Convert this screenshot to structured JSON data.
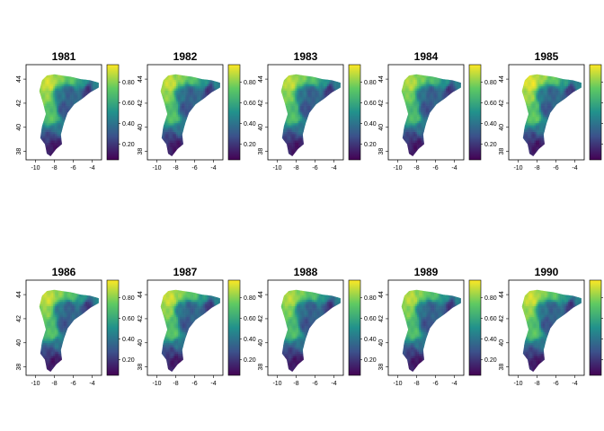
{
  "chart_data": {
    "type": "heatmap",
    "colormap": [
      "#440154",
      "#3b528b",
      "#21918c",
      "#5ec962",
      "#fde725"
    ],
    "panels": [
      {
        "title": "1981",
        "tone": 0.62
      },
      {
        "title": "1982",
        "tone": 0.6
      },
      {
        "title": "1983",
        "tone": 0.58
      },
      {
        "title": "1984",
        "tone": 0.55
      },
      {
        "title": "1985",
        "tone": 0.66
      },
      {
        "title": "1986",
        "tone": 0.6
      },
      {
        "title": "1987",
        "tone": 0.61
      },
      {
        "title": "1988",
        "tone": 0.56
      },
      {
        "title": "1989",
        "tone": 0.57
      },
      {
        "title": "1990",
        "tone": 0.62
      }
    ],
    "x_ticks": [
      "-10",
      "-8",
      "-6",
      "-4"
    ],
    "x_tick_values": [
      -10,
      -8,
      -6,
      -4
    ],
    "xlim": [
      -11,
      -3
    ],
    "y_ticks": [
      "38",
      "40",
      "42",
      "44"
    ],
    "y_tick_values": [
      38,
      40,
      42,
      44
    ],
    "ylim": [
      37.3,
      45.2
    ],
    "legend_ticks": [
      "0.20",
      "0.40",
      "0.60",
      "0.80"
    ],
    "legend_tick_values": [
      0.2,
      0.4,
      0.6,
      0.8
    ],
    "legend_range": [
      0.05,
      0.97
    ]
  }
}
